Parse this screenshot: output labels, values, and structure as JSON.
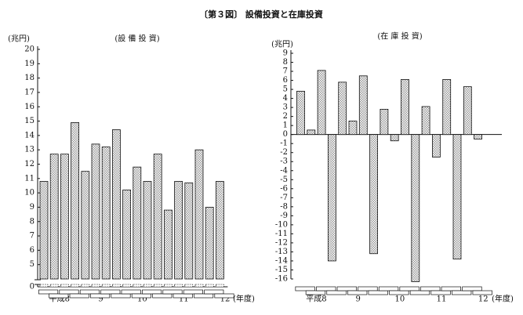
{
  "title": "〔第３図〕 設備投資と在庫投資",
  "chart_data": [
    {
      "type": "bar",
      "title": "(設 備 投 資)",
      "y_label": "(兆円)",
      "x_label": "(年度)",
      "categories": [
        "平成8",
        null,
        null,
        null,
        "9",
        null,
        null,
        null,
        "10",
        null,
        null,
        null,
        "11",
        null,
        null,
        null,
        "12",
        null
      ],
      "values": [
        10.8,
        12.7,
        12.7,
        14.9,
        11.5,
        13.4,
        13.2,
        14.4,
        10.2,
        11.8,
        10.8,
        12.7,
        8.8,
        10.8,
        10.7,
        13.0,
        9.0,
        10.8
      ],
      "color": "#9a9a9a",
      "ylim": [
        0,
        20
      ],
      "axis_break": [
        0,
        4
      ],
      "yticks": [
        0,
        5,
        6,
        7,
        8,
        9,
        10,
        11,
        12,
        13,
        14,
        15,
        16,
        17,
        18,
        19,
        20
      ]
    },
    {
      "type": "bar",
      "title": "(在 庫 投 資)",
      "y_label": "(兆円)",
      "x_label": "(年度)",
      "categories": [
        "平成8",
        null,
        null,
        null,
        "9",
        null,
        null,
        null,
        "10",
        null,
        null,
        null,
        "11",
        null,
        null,
        null,
        "12",
        null
      ],
      "values": [
        4.8,
        0.5,
        7.1,
        -14.0,
        5.8,
        1.5,
        6.5,
        -13.2,
        2.8,
        -0.7,
        6.1,
        -16.3,
        3.1,
        -2.5,
        6.1,
        -13.8,
        5.3,
        -0.5
      ],
      "color": "#9a9a9a",
      "ylim": [
        -16,
        9
      ],
      "yticks": [
        -16,
        -15,
        -14,
        -13,
        -12,
        -11,
        -10,
        -9,
        -8,
        -7,
        -6,
        -5,
        -4,
        -3,
        -2,
        -1,
        0,
        1,
        2,
        3,
        4,
        5,
        6,
        7,
        8,
        9
      ]
    }
  ]
}
